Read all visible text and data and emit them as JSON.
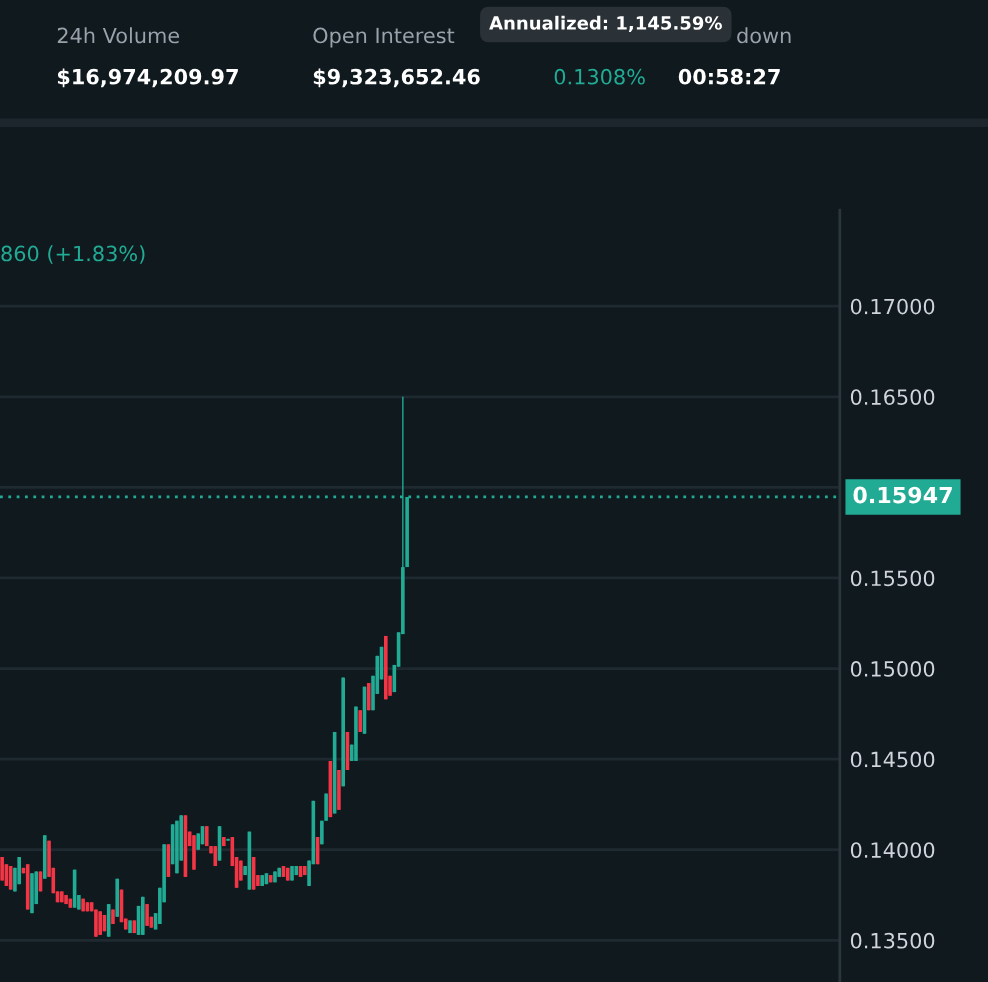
{
  "chart_data": {
    "type": "candlestick",
    "categories": [
      null,
      null,
      null,
      null,
      null,
      null,
      null,
      null,
      null,
      null,
      null,
      null,
      null,
      null,
      null,
      null,
      null,
      null,
      null,
      null,
      null,
      null,
      null,
      null,
      null,
      null,
      null,
      null,
      null,
      null,
      null,
      null,
      null,
      null,
      null,
      null,
      null,
      null,
      null,
      null,
      null,
      null,
      null,
      null,
      null,
      null,
      null,
      null,
      null,
      null,
      null,
      null,
      null,
      null,
      null,
      null,
      null,
      null,
      null,
      null,
      null,
      null,
      null,
      null,
      null,
      null,
      null,
      null,
      null,
      null,
      null,
      null,
      null,
      null,
      null,
      null,
      null,
      null,
      null,
      null,
      null,
      null,
      null,
      null,
      null,
      null,
      null,
      null,
      null,
      null,
      null,
      null,
      null,
      null,
      null,
      null,
      null,
      null,
      null,
      null,
      null,
      null,
      null,
      null,
      null,
      null,
      null,
      null,
      null,
      null,
      null,
      null,
      null,
      null,
      null,
      null,
      null,
      null,
      null,
      null,
      null,
      null,
      null,
      null,
      null,
      null,
      null,
      null,
      null,
      null,
      null,
      null,
      null,
      null,
      null,
      null,
      null,
      null,
      null,
      null,
      null,
      null,
      null,
      null,
      null,
      null,
      null,
      null,
      null,
      null,
      null,
      null,
      null,
      null,
      null,
      null,
      null,
      null,
      null,
      null,
      null,
      null,
      null,
      null,
      null,
      null,
      null,
      null,
      null,
      null,
      null,
      null,
      null,
      null,
      null,
      null,
      null,
      null,
      null,
      null,
      null,
      null,
      null,
      null,
      null,
      null,
      null,
      null,
      null,
      null,
      null,
      null,
      null,
      null,
      null,
      null,
      null
    ],
    "ohlc": [
      [
        0.1396,
        0.1396,
        0.1383,
        0.1383
      ],
      [
        0.1392,
        0.1392,
        0.138,
        0.138
      ],
      [
        0.1391,
        0.1391,
        0.1378,
        0.1378
      ],
      [
        0.1377,
        0.139,
        0.1377,
        0.139
      ],
      [
        0.1381,
        0.1396,
        0.1381,
        0.1396
      ],
      [
        0.139,
        0.139,
        0.1387,
        0.1387
      ],
      [
        0.1392,
        0.1392,
        0.1367,
        0.1367
      ],
      [
        0.1365,
        0.1387,
        0.1365,
        0.1387
      ],
      [
        0.137,
        0.1388,
        0.137,
        0.1388
      ],
      [
        0.1388,
        0.1388,
        0.1377,
        0.1377
      ],
      [
        0.1384,
        0.1408,
        0.1384,
        0.1408
      ],
      [
        0.1405,
        0.1405,
        0.1385,
        0.1385
      ],
      [
        0.139,
        0.139,
        0.1376,
        0.1376
      ],
      [
        0.1377,
        0.1377,
        0.1371,
        0.1371
      ],
      [
        0.1377,
        0.1377,
        0.1371,
        0.1371
      ],
      [
        0.1375,
        0.1375,
        0.137,
        0.137
      ],
      [
        0.1373,
        0.1373,
        0.1368,
        0.1368
      ],
      [
        0.1368,
        0.1389,
        0.1368,
        0.1389
      ],
      [
        0.1367,
        0.1375,
        0.1367,
        0.1375
      ],
      [
        0.1373,
        0.1373,
        0.1366,
        0.1366
      ],
      [
        0.1371,
        0.1371,
        0.1366,
        0.1366
      ],
      [
        0.1371,
        0.1371,
        0.1366,
        0.1366
      ],
      [
        0.1367,
        0.1367,
        0.1352,
        0.1352
      ],
      [
        0.1366,
        0.1366,
        0.1353,
        0.1353
      ],
      [
        0.1364,
        0.1364,
        0.1355,
        0.1355
      ],
      [
        0.1352,
        0.137,
        0.1352,
        0.137
      ],
      [
        0.1367,
        0.1367,
        0.1359,
        0.1359
      ],
      [
        0.1363,
        0.1384,
        0.1363,
        0.1384
      ],
      [
        0.1378,
        0.1378,
        0.136,
        0.136
      ],
      [
        0.1362,
        0.1362,
        0.1356,
        0.1356
      ],
      [
        0.1354,
        0.1361,
        0.1354,
        0.1361
      ],
      [
        0.1361,
        0.1361,
        0.1354,
        0.1354
      ],
      [
        0.1353,
        0.1369,
        0.1353,
        0.1369
      ],
      [
        0.1353,
        0.1374,
        0.1353,
        0.1374
      ],
      [
        0.137,
        0.137,
        0.1358,
        0.1358
      ],
      [
        0.1363,
        0.1363,
        0.1357,
        0.1357
      ],
      [
        0.1356,
        0.1365,
        0.1356,
        0.1365
      ],
      [
        0.1359,
        0.1379,
        0.1359,
        0.1379
      ],
      [
        0.1371,
        0.1403,
        0.1371,
        0.1403
      ],
      [
        0.1403,
        0.1403,
        0.1385,
        0.1385
      ],
      [
        0.1392,
        0.1414,
        0.1392,
        0.1414
      ],
      [
        0.1387,
        0.1416,
        0.1387,
        0.1416
      ],
      [
        0.1394,
        0.1419,
        0.1394,
        0.1419
      ],
      [
        0.1419,
        0.1419,
        0.1385,
        0.1385
      ],
      [
        0.141,
        0.141,
        0.1402,
        0.1402
      ],
      [
        0.1408,
        0.1408,
        0.1389,
        0.1389
      ],
      [
        0.14,
        0.1409,
        0.14,
        0.1409
      ],
      [
        0.1403,
        0.1413,
        0.1403,
        0.1413
      ],
      [
        0.1413,
        0.1413,
        0.1402,
        0.1402
      ],
      [
        0.1402,
        0.1402,
        0.1398,
        0.1398
      ],
      [
        0.1402,
        0.1402,
        0.1391,
        0.1391
      ],
      [
        0.1394,
        0.1413,
        0.1394,
        0.1413
      ],
      [
        0.1407,
        0.1407,
        0.1402,
        0.1402
      ],
      [
        0.1405,
        0.1406,
        0.1405,
        0.1406
      ],
      [
        0.1407,
        0.1407,
        0.1391,
        0.1391
      ],
      [
        0.1396,
        0.1396,
        0.1379,
        0.1379
      ],
      [
        0.1394,
        0.1394,
        0.1383,
        0.1383
      ],
      [
        0.1386,
        0.1391,
        0.1386,
        0.1391
      ],
      [
        0.1378,
        0.141,
        0.1378,
        0.141
      ],
      [
        0.1396,
        0.1396,
        0.1378,
        0.1378
      ],
      [
        0.1386,
        0.1386,
        0.138,
        0.138
      ],
      [
        0.138,
        0.1386,
        0.138,
        0.1386
      ],
      [
        0.1381,
        0.1387,
        0.1381,
        0.1387
      ],
      [
        0.1386,
        0.1386,
        0.1382,
        0.1382
      ],
      [
        0.1382,
        0.1388,
        0.1382,
        0.1388
      ],
      [
        0.1385,
        0.139,
        0.1385,
        0.139
      ],
      [
        0.1391,
        0.1391,
        0.1385,
        0.1385
      ],
      [
        0.139,
        0.139,
        0.1383,
        0.1383
      ],
      [
        0.1383,
        0.1391,
        0.1383,
        0.1391
      ],
      [
        0.1386,
        0.1391,
        0.1386,
        0.1391
      ],
      [
        0.1391,
        0.1391,
        0.1385,
        0.1385
      ],
      [
        0.1391,
        0.1391,
        0.1386,
        0.1386
      ],
      [
        0.138,
        0.1394,
        0.138,
        0.1394
      ],
      [
        0.1392,
        0.1427,
        0.1392,
        0.1427
      ],
      [
        0.1407,
        0.1407,
        0.1392,
        0.1392
      ],
      [
        0.1403,
        0.1416,
        0.1403,
        0.1416
      ],
      [
        0.1416,
        0.1431,
        0.1416,
        0.1431
      ],
      [
        0.1449,
        0.1449,
        0.1418,
        0.1418
      ],
      [
        0.142,
        0.1465,
        0.142,
        0.1465
      ],
      [
        0.1444,
        0.1444,
        0.1422,
        0.1422
      ],
      [
        0.1435,
        0.1495,
        0.1435,
        0.1495
      ],
      [
        0.1465,
        0.1465,
        0.1444,
        0.1444
      ],
      [
        0.1449,
        0.1458,
        0.1449,
        0.1458
      ],
      [
        0.1449,
        0.1479,
        0.1449,
        0.1479
      ],
      [
        0.1477,
        0.1477,
        0.1465,
        0.1465
      ],
      [
        0.1464,
        0.149,
        0.1464,
        0.149
      ],
      [
        0.1492,
        0.1492,
        0.1477,
        0.1477
      ],
      [
        0.1477,
        0.1496,
        0.1477,
        0.1496
      ],
      [
        0.1486,
        0.1507,
        0.1486,
        0.1507
      ],
      [
        0.1494,
        0.1512,
        0.1494,
        0.1512
      ],
      [
        0.1518,
        0.1518,
        0.1483,
        0.1483
      ],
      [
        0.1496,
        0.1496,
        0.1485,
        0.1485
      ],
      [
        0.1487,
        0.1502,
        0.1487,
        0.1502
      ],
      [
        0.1501,
        0.152,
        0.1501,
        0.152
      ],
      [
        0.1519,
        0.165,
        0.1519,
        0.1556
      ],
      [
        0.1556,
        0.15947,
        0.1556,
        0.15947
      ],
      null,
      null,
      null,
      null,
      null,
      null,
      null,
      null,
      null,
      null,
      null,
      null,
      null,
      null,
      null,
      null,
      null,
      null,
      null,
      null,
      null,
      null,
      null,
      null,
      null,
      null,
      null,
      null,
      null,
      null,
      null,
      null,
      null,
      null,
      null,
      null,
      null,
      null,
      null,
      null,
      null,
      null,
      null,
      null,
      null,
      null,
      null,
      null,
      null,
      null,
      null,
      null,
      null,
      null,
      null,
      null,
      null,
      null,
      null,
      null,
      null,
      null,
      null,
      null,
      null,
      null,
      null,
      null,
      null,
      null,
      null,
      null,
      null,
      null,
      null,
      null,
      null,
      null,
      null,
      null,
      null,
      null,
      null,
      null,
      null,
      null,
      null,
      null,
      null,
      null,
      null,
      null,
      null,
      null,
      null,
      null,
      null,
      null,
      null,
      null,
      null
    ],
    "colors": [
      "#f23645",
      "#f23645",
      "#f23645",
      "#22ab94",
      "#22ab94",
      "#f23645",
      "#f23645",
      "#22ab94",
      "#22ab94",
      "#f23645",
      "#22ab94",
      "#f23645",
      "#f23645",
      "#f23645",
      "#f23645",
      "#f23645",
      "#f23645",
      "#22ab94",
      "#22ab94",
      "#f23645",
      "#f23645",
      "#f23645",
      "#f23645",
      "#f23645",
      "#f23645",
      "#22ab94",
      "#f23645",
      "#22ab94",
      "#f23645",
      "#f23645",
      "#22ab94",
      "#f23645",
      "#22ab94",
      "#22ab94",
      "#f23645",
      "#f23645",
      "#22ab94",
      "#22ab94",
      "#22ab94",
      "#f23645",
      "#22ab94",
      "#22ab94",
      "#22ab94",
      "#f23645",
      "#f23645",
      "#f23645",
      "#22ab94",
      "#22ab94",
      "#f23645",
      "#f23645",
      "#f23645",
      "#22ab94",
      "#f23645",
      "#22ab94",
      "#f23645",
      "#f23645",
      "#f23645",
      "#22ab94",
      "#22ab94",
      "#f23645",
      "#f23645",
      "#22ab94",
      "#22ab94",
      "#f23645",
      "#22ab94",
      "#22ab94",
      "#f23645",
      "#f23645",
      "#22ab94",
      "#22ab94",
      "#f23645",
      "#f23645",
      "#22ab94",
      "#22ab94",
      "#f23645",
      "#22ab94",
      "#22ab94",
      "#f23645",
      "#22ab94",
      "#f23645",
      "#22ab94",
      "#f23645",
      "#22ab94",
      "#22ab94",
      "#f23645",
      "#22ab94",
      "#f23645",
      "#22ab94",
      "#22ab94",
      "#22ab94",
      "#f23645",
      "#f23645",
      "#22ab94",
      "#22ab94",
      "#22ab94",
      "#22ab94",
      null,
      null,
      null,
      null,
      null,
      null,
      null,
      null,
      null,
      null,
      null,
      null,
      null,
      null,
      null,
      null,
      null,
      null,
      null,
      null,
      null,
      null,
      null,
      null,
      null,
      null,
      null,
      null,
      null,
      null,
      null,
      null,
      null,
      null,
      null,
      null,
      null,
      null,
      null,
      null,
      null,
      null,
      null,
      null,
      null,
      null,
      null,
      null,
      null,
      null,
      null,
      null,
      null,
      null,
      null,
      null,
      null,
      null,
      null,
      null,
      null,
      null,
      null,
      null,
      null,
      null,
      null,
      null,
      null,
      null,
      null,
      null,
      null,
      null,
      null,
      null,
      null,
      null,
      null,
      null,
      null,
      null,
      null,
      null,
      null,
      null,
      null,
      null,
      null,
      null,
      null,
      null,
      null,
      null,
      null,
      null,
      null,
      null,
      null,
      null,
      null
    ],
    "ylim": [
      0.1327,
      0.1753
    ],
    "yticks": [
      {
        "value": 0.135,
        "label": "0.13500"
      },
      {
        "value": 0.14,
        "label": "0.14000"
      },
      {
        "value": 0.145,
        "label": "0.14500"
      },
      {
        "value": 0.15,
        "label": "0.15000"
      },
      {
        "value": 0.155,
        "label": "0.15500"
      },
      {
        "value": 0.16,
        "label": null
      },
      {
        "value": 0.165,
        "label": "0.16500"
      },
      {
        "value": 0.17,
        "label": "0.17000"
      }
    ],
    "ref_lines": [
      {
        "axis": "y",
        "value": 0.15947,
        "label": "0.15947",
        "color": "#22ab94",
        "line_style": "dotted"
      }
    ],
    "grid": "y",
    "tick_labels": "y",
    "annotations": [
      "24h Volume",
      "$16,974,209.97",
      "Open Interest",
      "$9,323,652.46",
      "0.1308%",
      "00:58:27",
      "down",
      "Annualized: 1,145.59%",
      "860 (+1.83%)"
    ]
  }
}
